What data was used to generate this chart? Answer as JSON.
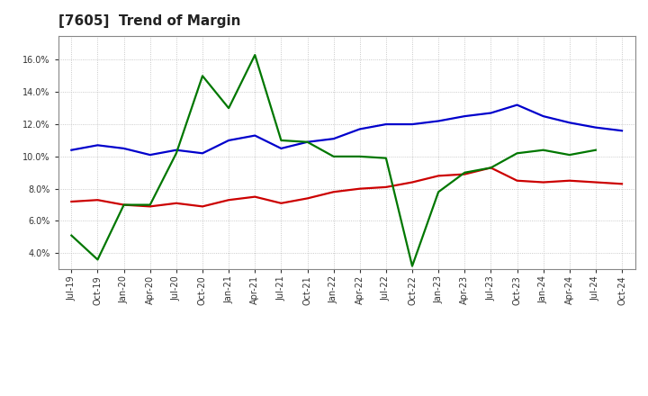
{
  "title": "[7605]  Trend of Margin",
  "x_labels": [
    "Jul-19",
    "Oct-19",
    "Jan-20",
    "Apr-20",
    "Jul-20",
    "Oct-20",
    "Jan-21",
    "Apr-21",
    "Jul-21",
    "Oct-21",
    "Jan-22",
    "Apr-22",
    "Jul-22",
    "Oct-22",
    "Jan-23",
    "Apr-23",
    "Jul-23",
    "Oct-23",
    "Jan-24",
    "Apr-24",
    "Jul-24",
    "Oct-24"
  ],
  "ordinary_income": [
    10.4,
    10.7,
    10.5,
    10.1,
    10.4,
    10.2,
    11.0,
    11.3,
    10.5,
    10.9,
    11.1,
    11.7,
    12.0,
    12.0,
    12.2,
    12.5,
    12.7,
    13.2,
    12.5,
    12.1,
    11.8,
    11.6
  ],
  "net_income": [
    7.2,
    7.3,
    7.0,
    6.9,
    7.1,
    6.9,
    7.3,
    7.5,
    7.1,
    7.4,
    7.8,
    8.0,
    8.1,
    8.4,
    8.8,
    8.9,
    9.3,
    8.5,
    8.4,
    8.5,
    8.4,
    8.3
  ],
  "operating_cashflow": [
    5.1,
    3.6,
    7.0,
    7.0,
    10.2,
    15.0,
    13.0,
    16.3,
    11.0,
    10.9,
    10.0,
    10.0,
    9.9,
    3.2,
    7.8,
    9.0,
    9.3,
    10.2,
    10.4,
    10.1,
    10.4,
    null
  ],
  "ylim": [
    3.0,
    17.5
  ],
  "yticks": [
    4.0,
    6.0,
    8.0,
    10.0,
    12.0,
    14.0,
    16.0
  ],
  "line_color_blue": "#0000CC",
  "line_color_red": "#CC0000",
  "line_color_green": "#007700",
  "bg_color": "#FFFFFF",
  "plot_bg_color": "#FFFFFF",
  "grid_color": "#BBBBBB",
  "title_fontsize": 11,
  "tick_fontsize": 7,
  "legend_fontsize": 8.5
}
